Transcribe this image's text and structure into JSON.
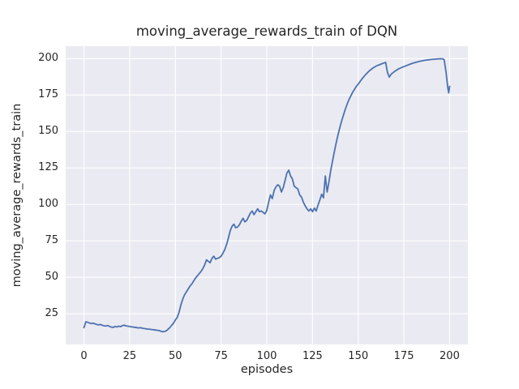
{
  "chart_data": {
    "type": "line",
    "title": "moving_average_rewards_train of DQN",
    "xlabel": "episodes",
    "ylabel": "moving_average_rewards_train",
    "xlim": [
      -10,
      210
    ],
    "ylim": [
      4,
      208.5
    ],
    "xticks": [
      0,
      25,
      50,
      75,
      100,
      125,
      150,
      175,
      200
    ],
    "yticks": [
      25,
      50,
      75,
      100,
      125,
      150,
      175,
      200
    ],
    "grid": true,
    "legend": "none",
    "style": {
      "figure_bg": "#ffffff",
      "axes_bg": "#eaeaf2",
      "grid_color": "#ffffff",
      "text_color": "#262626",
      "line_color": "#4c72b0",
      "line_width": 1.8
    },
    "series": [
      {
        "name": "moving_average_rewards_train",
        "x": [
          0,
          1,
          2,
          3,
          4,
          5,
          6,
          7,
          8,
          9,
          10,
          11,
          12,
          13,
          14,
          15,
          16,
          17,
          18,
          19,
          20,
          21,
          22,
          23,
          24,
          25,
          26,
          27,
          28,
          29,
          30,
          31,
          32,
          33,
          34,
          35,
          36,
          37,
          38,
          39,
          40,
          41,
          42,
          43,
          44,
          45,
          46,
          47,
          48,
          49,
          50,
          51,
          52,
          53,
          54,
          55,
          56,
          57,
          58,
          59,
          60,
          61,
          62,
          63,
          64,
          65,
          66,
          67,
          68,
          69,
          70,
          71,
          72,
          73,
          74,
          75,
          76,
          77,
          78,
          79,
          80,
          81,
          82,
          83,
          84,
          85,
          86,
          87,
          88,
          89,
          90,
          91,
          92,
          93,
          94,
          95,
          96,
          97,
          98,
          99,
          100,
          101,
          102,
          103,
          104,
          105,
          106,
          107,
          108,
          109,
          110,
          111,
          112,
          113,
          114,
          115,
          116,
          117,
          118,
          119,
          120,
          121,
          122,
          123,
          124,
          125,
          126,
          127,
          128,
          129,
          130,
          131,
          132,
          133,
          134,
          135,
          136,
          137,
          138,
          139,
          140,
          141,
          142,
          143,
          144,
          145,
          146,
          147,
          148,
          149,
          150,
          152,
          154,
          156,
          158,
          160,
          162,
          164,
          165,
          166,
          167,
          168,
          170,
          172,
          174,
          176,
          178,
          180,
          182,
          184,
          186,
          188,
          190,
          192,
          194,
          196,
          197,
          198,
          199,
          199.5,
          200
        ],
        "y": [
          15.5,
          19.5,
          19.2,
          18.7,
          18.3,
          18.6,
          18.1,
          17.7,
          17.4,
          17.7,
          17.1,
          16.8,
          16.6,
          17.0,
          16.3,
          15.9,
          15.7,
          16.3,
          16.0,
          16.5,
          16.2,
          16.9,
          17.2,
          16.7,
          16.5,
          16.3,
          16.1,
          15.9,
          15.7,
          15.5,
          15.3,
          15.5,
          15.1,
          14.9,
          14.7,
          14.5,
          14.4,
          14.2,
          14.1,
          13.9,
          13.7,
          13.5,
          13.1,
          12.7,
          12.9,
          13.3,
          14.4,
          15.6,
          17.2,
          18.6,
          20.8,
          22.5,
          26,
          31,
          35,
          38,
          40,
          42,
          44,
          45.5,
          47.5,
          49.5,
          51,
          52.5,
          54,
          56,
          58.5,
          62,
          61,
          60,
          63,
          64.5,
          62.5,
          63,
          63.5,
          64.5,
          66.5,
          69,
          72.5,
          77,
          82,
          85,
          86.5,
          84,
          84.5,
          86,
          88.5,
          90.5,
          88,
          89,
          91.5,
          94,
          95.5,
          93,
          95,
          97,
          95,
          95.5,
          94.5,
          93.5,
          96,
          101.5,
          106.5,
          104,
          109.5,
          112,
          113.5,
          112.5,
          108.5,
          111.5,
          116.5,
          121.5,
          123.5,
          119.5,
          117.5,
          112.5,
          111.5,
          110.5,
          106.5,
          105,
          101.5,
          99,
          97,
          95.5,
          97,
          95,
          97.5,
          95.5,
          99.5,
          103,
          107,
          104.5,
          119.5,
          108.5,
          115.5,
          123.5,
          130,
          136.5,
          142.5,
          148,
          153,
          157.5,
          161.5,
          165.5,
          169,
          172,
          174.5,
          177,
          179,
          181,
          182.5,
          186,
          189,
          191.5,
          193.5,
          195,
          196,
          197,
          197.4,
          190.5,
          187.3,
          189.3,
          191.3,
          192.9,
          194,
          195,
          196,
          196.9,
          197.6,
          198.2,
          198.7,
          199.1,
          199.4,
          199.6,
          199.8,
          199.9,
          199.3,
          191,
          180,
          176.5,
          181
        ]
      }
    ]
  }
}
